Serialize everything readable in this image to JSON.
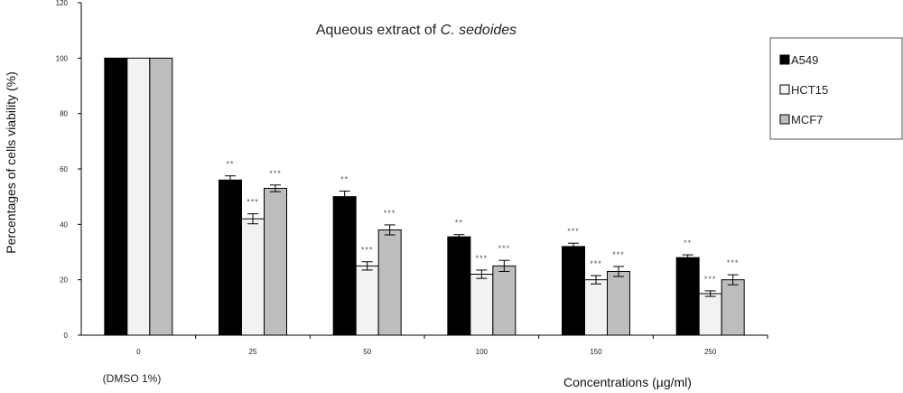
{
  "chart_data": {
    "type": "bar",
    "title_prefix": "Aqueous extract of",
    "title_italic": "C. sedoides",
    "ylabel": "Percentages of cells viability (%)",
    "xlabel": "Concentrations (µg/ml)",
    "ylim": [
      0,
      120
    ],
    "yticks": [
      "0",
      "20",
      "40",
      "60",
      "80",
      "100",
      "120"
    ],
    "categories": [
      "0",
      "25",
      "50",
      "100",
      "150",
      "250"
    ],
    "category_note": "(DMSO 1%)",
    "legend_position": "right",
    "series": [
      {
        "name": "A549",
        "color": "#000000",
        "values": [
          100,
          56,
          50,
          35.5,
          32,
          28
        ],
        "errors": [
          0,
          1.5,
          2,
          0.8,
          1.2,
          1
        ],
        "significance": [
          "",
          "**",
          "**",
          "**",
          "***",
          "**"
        ]
      },
      {
        "name": "HCT15",
        "color": "#f2f2f2",
        "values": [
          100,
          42,
          25,
          22,
          20,
          15
        ],
        "errors": [
          0,
          1.8,
          1.5,
          1.5,
          1.5,
          1
        ],
        "significance": [
          "",
          "***",
          "***",
          "***",
          "***",
          "***"
        ]
      },
      {
        "name": "MCF7",
        "color": "#bdbdbd",
        "values": [
          100,
          53,
          38,
          25,
          23,
          20
        ],
        "errors": [
          0,
          1.2,
          1.8,
          2,
          1.8,
          1.8
        ],
        "significance": [
          "",
          "***",
          "***",
          "***",
          "***",
          "***"
        ]
      }
    ]
  }
}
